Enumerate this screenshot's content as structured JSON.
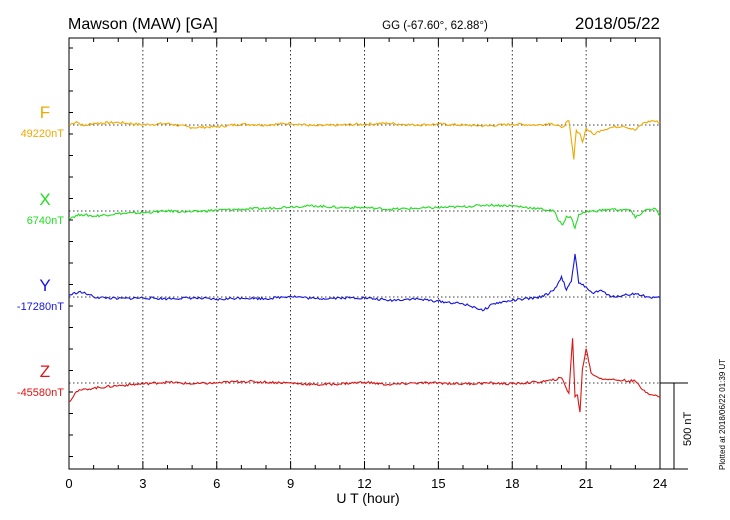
{
  "header": {
    "station": "Mawson (MAW)  [GA]",
    "coords": "GG (-67.60°,  62.88°)",
    "date": "2018/05/22"
  },
  "plotted_note": "Plotted at 2018/06/22 01:39 UT",
  "scale_label": "500 nT",
  "chart_data": {
    "type": "line",
    "xlabel": "U T (hour)",
    "xlim": [
      0,
      24
    ],
    "xticks": [
      0,
      3,
      6,
      9,
      12,
      15,
      18,
      21,
      24
    ],
    "tick_labels": [
      "0",
      "3",
      "6",
      "9",
      "12",
      "15",
      "18",
      "21",
      "24"
    ],
    "grid": true,
    "scale_nT": 500,
    "series": [
      {
        "name": "F",
        "baseline_label": "49220nT",
        "baseline_nT": 49220,
        "color": "#f0a800",
        "points": [
          [
            0,
            0
          ],
          [
            0.3,
            20
          ],
          [
            0.6,
            -5
          ],
          [
            1,
            10
          ],
          [
            2,
            15
          ],
          [
            3,
            2
          ],
          [
            4,
            8
          ],
          [
            5,
            -15
          ],
          [
            6,
            -10
          ],
          [
            7,
            5
          ],
          [
            8,
            0
          ],
          [
            9,
            10
          ],
          [
            10,
            -5
          ],
          [
            11,
            0
          ],
          [
            12,
            5
          ],
          [
            13,
            10
          ],
          [
            14,
            0
          ],
          [
            15,
            5
          ],
          [
            16,
            0
          ],
          [
            17,
            -5
          ],
          [
            18,
            5
          ],
          [
            19,
            0
          ],
          [
            19.6,
            10
          ],
          [
            20.0,
            -15
          ],
          [
            20.3,
            25
          ],
          [
            20.5,
            -200
          ],
          [
            20.6,
            -30
          ],
          [
            20.75,
            -50
          ],
          [
            20.85,
            -100
          ],
          [
            21.0,
            -20
          ],
          [
            21.3,
            -55
          ],
          [
            21.6,
            -30
          ],
          [
            22,
            -15
          ],
          [
            22.5,
            -5
          ],
          [
            23,
            -30
          ],
          [
            23.3,
            10
          ],
          [
            23.7,
            25
          ],
          [
            24,
            15
          ]
        ]
      },
      {
        "name": "X",
        "baseline_label": "6740nT",
        "baseline_nT": 6740,
        "color": "#22dd22",
        "points": [
          [
            0,
            -40
          ],
          [
            0.5,
            -20
          ],
          [
            1,
            -30
          ],
          [
            2,
            -15
          ],
          [
            3,
            -10
          ],
          [
            4,
            0
          ],
          [
            5,
            -5
          ],
          [
            6,
            5
          ],
          [
            7,
            10
          ],
          [
            8,
            15
          ],
          [
            9,
            25
          ],
          [
            10,
            30
          ],
          [
            11,
            20
          ],
          [
            12,
            20
          ],
          [
            13,
            10
          ],
          [
            14,
            15
          ],
          [
            15,
            20
          ],
          [
            16,
            25
          ],
          [
            17,
            35
          ],
          [
            18,
            30
          ],
          [
            19,
            15
          ],
          [
            19.7,
            0
          ],
          [
            19.9,
            -60
          ],
          [
            20.05,
            -80
          ],
          [
            20.2,
            -30
          ],
          [
            20.4,
            -40
          ],
          [
            20.55,
            -100
          ],
          [
            20.7,
            -20
          ],
          [
            21,
            -5
          ],
          [
            22,
            10
          ],
          [
            22.8,
            5
          ],
          [
            23,
            -40
          ],
          [
            23.4,
            5
          ],
          [
            23.8,
            15
          ],
          [
            24,
            -30
          ]
        ]
      },
      {
        "name": "Y",
        "baseline_label": "-17280nT",
        "baseline_nT": -17280,
        "color": "#1414dd",
        "points": [
          [
            0,
            10
          ],
          [
            0.4,
            30
          ],
          [
            0.8,
            15
          ],
          [
            1,
            0
          ],
          [
            2,
            -10
          ],
          [
            3,
            -5
          ],
          [
            4,
            -10
          ],
          [
            5,
            -5
          ],
          [
            6,
            -15
          ],
          [
            7,
            -5
          ],
          [
            8,
            -10
          ],
          [
            9,
            5
          ],
          [
            10,
            -10
          ],
          [
            11,
            -5
          ],
          [
            12,
            -5
          ],
          [
            13,
            -20
          ],
          [
            14,
            -10
          ],
          [
            15,
            -25
          ],
          [
            16,
            -40
          ],
          [
            16.5,
            -60
          ],
          [
            16.8,
            -80
          ],
          [
            17.2,
            -40
          ],
          [
            18,
            -20
          ],
          [
            19,
            -5
          ],
          [
            19.5,
            20
          ],
          [
            19.8,
            60
          ],
          [
            20.0,
            120
          ],
          [
            20.2,
            40
          ],
          [
            20.4,
            90
          ],
          [
            20.55,
            250
          ],
          [
            20.7,
            80
          ],
          [
            21,
            60
          ],
          [
            21.3,
            20
          ],
          [
            21.6,
            40
          ],
          [
            22,
            0
          ],
          [
            22.5,
            10
          ],
          [
            23,
            20
          ],
          [
            23.5,
            0
          ],
          [
            24,
            -5
          ]
        ]
      },
      {
        "name": "Z",
        "baseline_label": "-45580nT",
        "baseline_nT": -45580,
        "color": "#dd1414",
        "points": [
          [
            0,
            -110
          ],
          [
            0.3,
            -50
          ],
          [
            0.7,
            -35
          ],
          [
            1,
            -30
          ],
          [
            2,
            -15
          ],
          [
            3,
            -5
          ],
          [
            4,
            5
          ],
          [
            5,
            -5
          ],
          [
            6,
            0
          ],
          [
            7,
            10
          ],
          [
            8,
            5
          ],
          [
            9,
            0
          ],
          [
            10,
            -10
          ],
          [
            11,
            -5
          ],
          [
            12,
            5
          ],
          [
            13,
            -10
          ],
          [
            14,
            0
          ],
          [
            15,
            0
          ],
          [
            16,
            -5
          ],
          [
            17,
            0
          ],
          [
            18,
            -5
          ],
          [
            19,
            5
          ],
          [
            19.6,
            15
          ],
          [
            20.0,
            30
          ],
          [
            20.3,
            -60
          ],
          [
            20.45,
            260
          ],
          [
            20.55,
            -80
          ],
          [
            20.65,
            -70
          ],
          [
            20.75,
            -170
          ],
          [
            20.85,
            80
          ],
          [
            21.0,
            200
          ],
          [
            21.2,
            60
          ],
          [
            21.5,
            30
          ],
          [
            22,
            20
          ],
          [
            22.5,
            15
          ],
          [
            23,
            10
          ],
          [
            23.3,
            -40
          ],
          [
            23.7,
            -70
          ],
          [
            24,
            -80
          ]
        ]
      }
    ]
  }
}
